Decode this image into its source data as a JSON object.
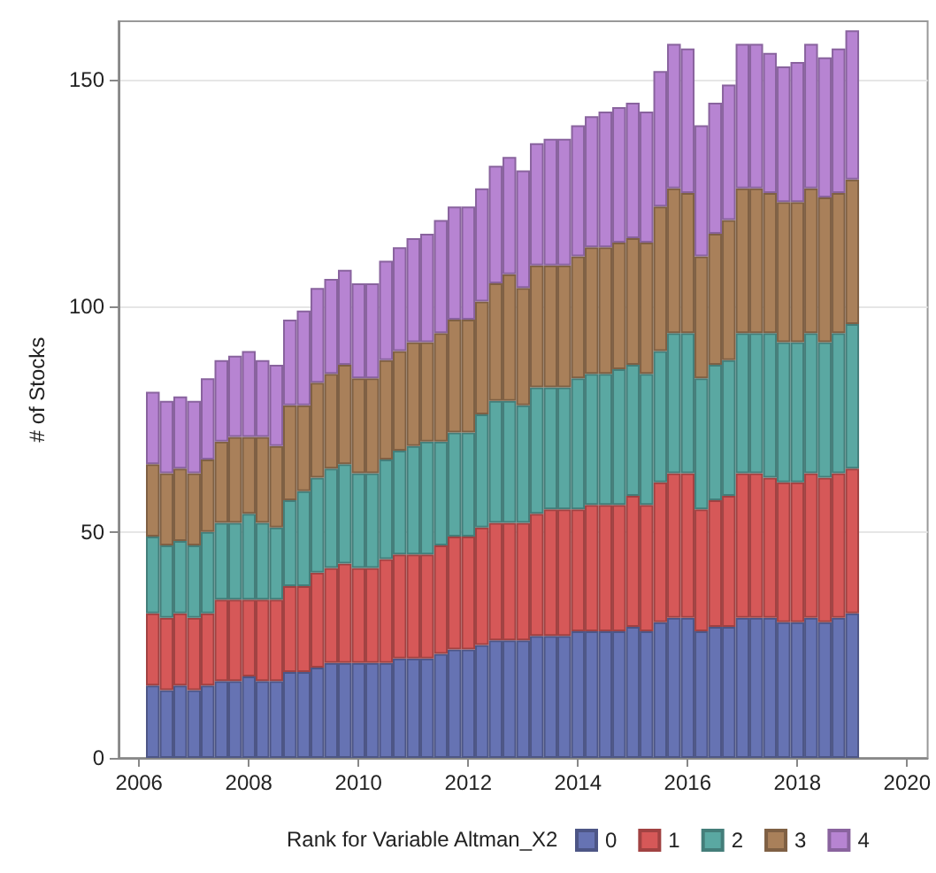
{
  "chart_data": {
    "type": "bar",
    "stacked": true,
    "xlabel": null,
    "ylabel": "# of Stocks",
    "legend_title": "Rank for Variable Altman_X2",
    "legend": "bottom",
    "grid": "y",
    "x": [
      2006.25,
      2006.5,
      2006.75,
      2007,
      2007.25,
      2007.5,
      2007.75,
      2008,
      2008.25,
      2008.5,
      2008.75,
      2009,
      2009.25,
      2009.5,
      2009.75,
      2010,
      2010.25,
      2010.5,
      2010.75,
      2011,
      2011.25,
      2011.5,
      2011.75,
      2012,
      2012.25,
      2012.5,
      2012.75,
      2013,
      2013.25,
      2013.5,
      2013.75,
      2014,
      2014.25,
      2014.5,
      2014.75,
      2015,
      2015.25,
      2015.5,
      2015.75,
      2016,
      2016.25,
      2016.5,
      2016.75,
      2017,
      2017.25,
      2017.5,
      2017.75,
      2018,
      2018.25,
      2018.5,
      2018.75,
      2019
    ],
    "xlim": [
      2005.625,
      2020.375
    ],
    "xticks": [
      2006,
      2008,
      2010,
      2012,
      2014,
      2016,
      2018,
      2020
    ],
    "ylim": [
      0,
      163
    ],
    "yticks": [
      0,
      50,
      100,
      150
    ],
    "series": [
      {
        "name": "0",
        "color": "#6673b3",
        "values": [
          16,
          15,
          16,
          15,
          16,
          17,
          17,
          18,
          17,
          17,
          19,
          19,
          20,
          21,
          21,
          21,
          21,
          21,
          22,
          22,
          22,
          23,
          24,
          24,
          25,
          26,
          26,
          26,
          27,
          27,
          27,
          28,
          28,
          28,
          28,
          29,
          28,
          30,
          31,
          31,
          28,
          29,
          29,
          31,
          31,
          31,
          30,
          30,
          31,
          30,
          31,
          32
        ]
      },
      {
        "name": "1",
        "color": "#d65858",
        "values": [
          16,
          16,
          16,
          16,
          16,
          18,
          18,
          17,
          18,
          18,
          19,
          19,
          21,
          21,
          22,
          21,
          21,
          23,
          23,
          23,
          23,
          24,
          25,
          25,
          26,
          26,
          26,
          26,
          27,
          28,
          28,
          27,
          28,
          28,
          28,
          29,
          28,
          31,
          32,
          32,
          27,
          28,
          29,
          32,
          32,
          31,
          31,
          31,
          32,
          32,
          32,
          32
        ]
      },
      {
        "name": "2",
        "color": "#5aa8a2",
        "values": [
          17,
          16,
          16,
          16,
          18,
          17,
          17,
          19,
          17,
          16,
          19,
          21,
          21,
          22,
          22,
          21,
          21,
          22,
          23,
          24,
          25,
          23,
          23,
          23,
          25,
          27,
          27,
          26,
          28,
          27,
          27,
          29,
          29,
          29,
          30,
          29,
          29,
          29,
          31,
          31,
          29,
          30,
          30,
          31,
          31,
          32,
          31,
          31,
          31,
          30,
          31,
          32
        ]
      },
      {
        "name": "3",
        "color": "#a9805a",
        "values": [
          16,
          16,
          16,
          16,
          16,
          18,
          19,
          17,
          19,
          18,
          21,
          19,
          21,
          21,
          22,
          21,
          21,
          22,
          22,
          23,
          22,
          24,
          25,
          25,
          25,
          26,
          28,
          26,
          27,
          27,
          27,
          27,
          28,
          28,
          28,
          28,
          29,
          32,
          32,
          31,
          27,
          29,
          31,
          32,
          32,
          31,
          31,
          31,
          32,
          32,
          31,
          32
        ]
      },
      {
        "name": "4",
        "color": "#b784d2",
        "values": [
          16,
          16,
          16,
          16,
          18,
          18,
          18,
          19,
          17,
          18,
          19,
          21,
          21,
          21,
          21,
          21,
          21,
          22,
          23,
          23,
          24,
          25,
          25,
          25,
          25,
          26,
          26,
          26,
          27,
          28,
          28,
          29,
          29,
          30,
          30,
          30,
          29,
          30,
          32,
          32,
          29,
          29,
          30,
          32,
          32,
          31,
          30,
          31,
          32,
          31,
          32,
          33
        ]
      }
    ]
  }
}
